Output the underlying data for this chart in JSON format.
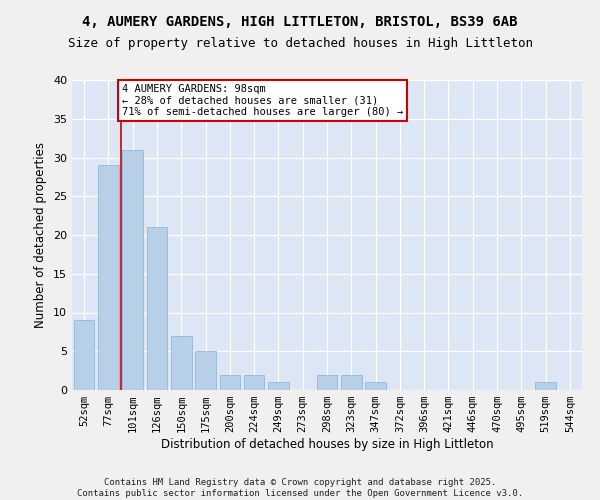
{
  "title": "4, AUMERY GARDENS, HIGH LITTLETON, BRISTOL, BS39 6AB",
  "subtitle": "Size of property relative to detached houses in High Littleton",
  "xlabel": "Distribution of detached houses by size in High Littleton",
  "ylabel": "Number of detached properties",
  "categories": [
    "52sqm",
    "77sqm",
    "101sqm",
    "126sqm",
    "150sqm",
    "175sqm",
    "200sqm",
    "224sqm",
    "249sqm",
    "273sqm",
    "298sqm",
    "323sqm",
    "347sqm",
    "372sqm",
    "396sqm",
    "421sqm",
    "446sqm",
    "470sqm",
    "495sqm",
    "519sqm",
    "544sqm"
  ],
  "values": [
    9,
    29,
    31,
    21,
    7,
    5,
    2,
    2,
    1,
    0,
    2,
    2,
    1,
    0,
    0,
    0,
    0,
    0,
    0,
    1,
    0
  ],
  "bar_color": "#b8cfe8",
  "bar_edge_color": "#8aafd4",
  "bg_color": "#dce6f5",
  "grid_color": "#ffffff",
  "vline_color": "#cc0000",
  "vline_x_index": 2,
  "annotation_text": "4 AUMERY GARDENS: 98sqm\n← 28% of detached houses are smaller (31)\n71% of semi-detached houses are larger (80) →",
  "annotation_box_color": "#cc0000",
  "footer": "Contains HM Land Registry data © Crown copyright and database right 2025.\nContains public sector information licensed under the Open Government Licence v3.0.",
  "ylim": [
    0,
    40
  ],
  "yticks": [
    0,
    5,
    10,
    15,
    20,
    25,
    30,
    35,
    40
  ],
  "fig_bg": "#f0f0f0"
}
